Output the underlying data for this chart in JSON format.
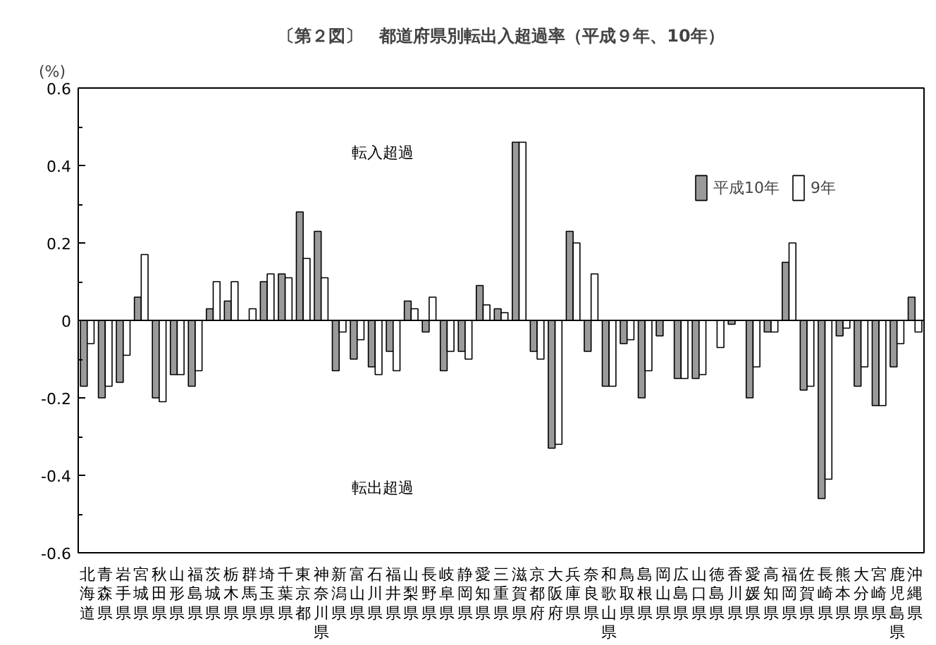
{
  "chart_data": {
    "type": "bar",
    "title": "〔第２図〕　都道府県別転出入超過率（平成９年、10年）",
    "ylabel": "(%)",
    "categories": [
      "北海道",
      "青森県",
      "岩手県",
      "宮城県",
      "秋田県",
      "山形県",
      "福島県",
      "茨城県",
      "栃木県",
      "群馬県",
      "埼玉県",
      "千葉県",
      "東京都",
      "神奈川県",
      "新潟県",
      "富山県",
      "石川県",
      "福井県",
      "山梨県",
      "長野県",
      "岐阜県",
      "静岡県",
      "愛知県",
      "三重県",
      "滋賀県",
      "京都府",
      "大阪府",
      "兵庫県",
      "奈良県",
      "和歌山県",
      "鳥取県",
      "島根県",
      "岡山県",
      "広島県",
      "山口県",
      "徳島県",
      "香川県",
      "愛媛県",
      "高知県",
      "福岡県",
      "佐賀県",
      "長崎県",
      "熊本県",
      "大分県",
      "宮崎県",
      "鹿児島県",
      "沖縄県"
    ],
    "series": [
      {
        "name": "平成10年",
        "color": "#9a9a9a",
        "values": [
          -0.17,
          -0.2,
          -0.16,
          0.06,
          -0.2,
          -0.14,
          -0.17,
          0.03,
          0.05,
          null,
          0.1,
          0.12,
          0.28,
          0.23,
          -0.13,
          -0.1,
          -0.12,
          -0.08,
          0.05,
          -0.03,
          -0.13,
          -0.08,
          0.09,
          0.03,
          0.46,
          -0.08,
          -0.33,
          0.23,
          -0.08,
          -0.17,
          -0.06,
          -0.2,
          -0.04,
          -0.15,
          -0.15,
          null,
          -0.01,
          -0.2,
          -0.03,
          0.15,
          -0.18,
          -0.46,
          -0.04,
          -0.17,
          -0.22,
          -0.12,
          0.06
        ]
      },
      {
        "name": "9年",
        "color": "#ffffff",
        "values": [
          -0.06,
          -0.17,
          -0.09,
          0.17,
          -0.21,
          -0.14,
          -0.13,
          0.1,
          0.1,
          0.03,
          0.12,
          0.11,
          0.16,
          0.11,
          -0.03,
          -0.05,
          -0.14,
          -0.13,
          0.03,
          0.06,
          -0.08,
          -0.1,
          0.04,
          0.02,
          0.46,
          -0.1,
          -0.32,
          0.2,
          0.12,
          -0.17,
          -0.05,
          -0.13,
          null,
          -0.15,
          -0.14,
          -0.07,
          null,
          -0.12,
          -0.03,
          0.2,
          -0.17,
          -0.41,
          -0.02,
          -0.12,
          -0.22,
          -0.06,
          -0.03
        ]
      }
    ],
    "ylim": [
      -0.6,
      0.6
    ],
    "yticks": [
      -0.6,
      {
        "value": -0.5,
        "label": null
      },
      -0.4,
      {
        "value": -0.3,
        "label": null
      },
      -0.2,
      {
        "value": -0.1,
        "label": null
      },
      0,
      {
        "value": 0.1,
        "label": null
      },
      0.2,
      {
        "value": 0.3,
        "label": null
      },
      0.4,
      {
        "value": 0.5,
        "label": null
      },
      0.6
    ],
    "ref_lines": [
      {
        "axis": "y",
        "value": 0
      }
    ],
    "annotations": [
      "転入超過",
      "転出超過"
    ],
    "legend": "top right"
  }
}
